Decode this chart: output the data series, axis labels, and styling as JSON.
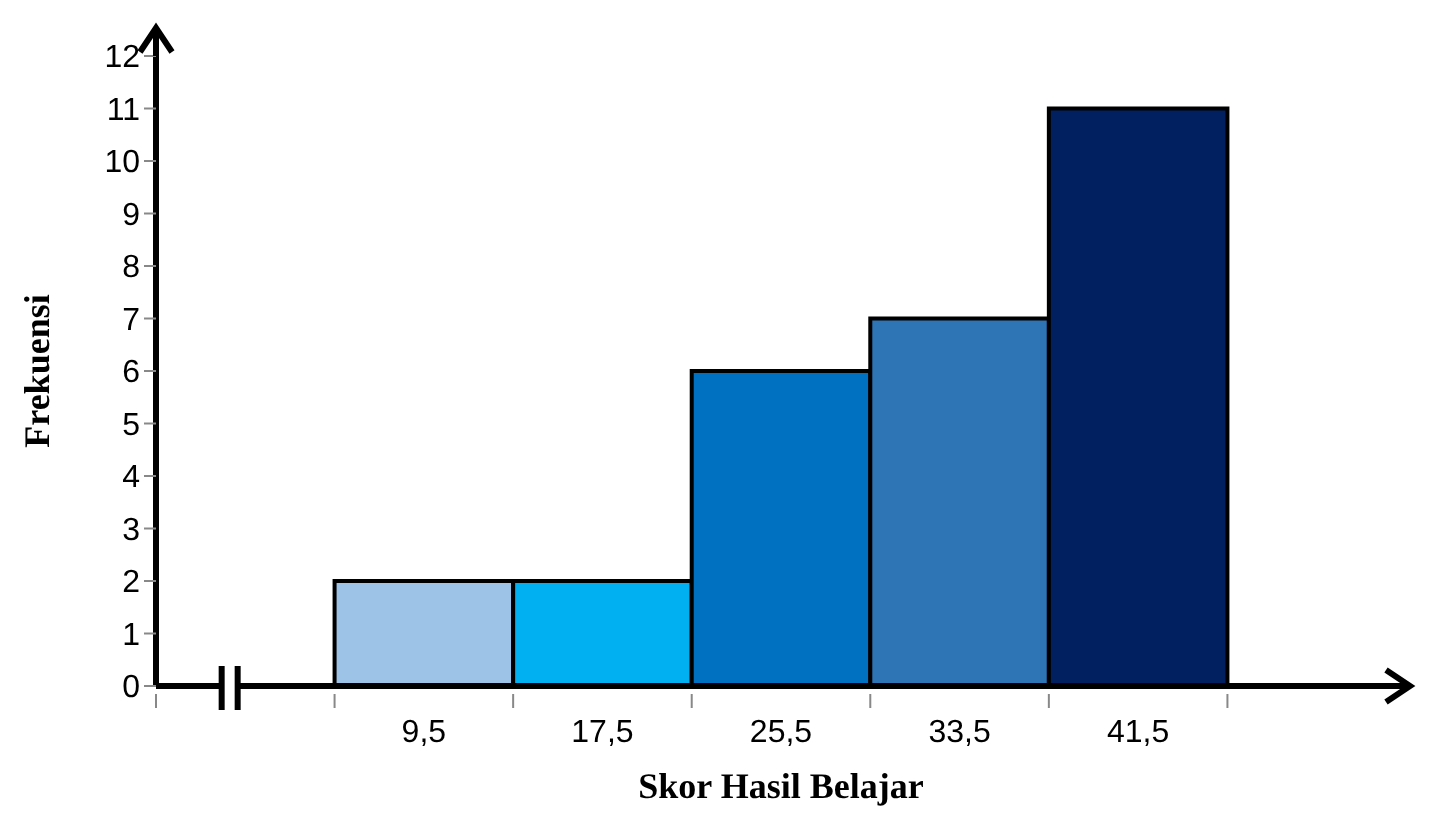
{
  "chart_data": {
    "type": "histogram",
    "xlabel": "Skor Hasil Belajar",
    "ylabel": "Frekuensi",
    "bins": [
      5.5,
      13.5,
      21.5,
      29.5,
      37.5,
      45.5
    ],
    "values": [
      2,
      2,
      6,
      7,
      11
    ],
    "colors": [
      "#9dc3e6",
      "#00b0f0",
      "#0070c0",
      "#2e75b6",
      "#002060"
    ],
    "xlim": [
      -2.5,
      53.5
    ],
    "xticks": [
      {
        "value": -2.5,
        "label": null
      },
      {
        "value": 5.5,
        "label": null
      },
      {
        "value": 9.5,
        "label": "9,5"
      },
      {
        "value": 13.5,
        "label": null
      },
      {
        "value": 17.5,
        "label": "17,5"
      },
      {
        "value": 21.5,
        "label": null
      },
      {
        "value": 25.5,
        "label": "25,5"
      },
      {
        "value": 29.5,
        "label": null
      },
      {
        "value": 33.5,
        "label": "33,5"
      },
      {
        "value": 37.5,
        "label": null
      },
      {
        "value": 41.5,
        "label": "41,5"
      },
      {
        "value": 45.5,
        "label": null
      }
    ],
    "ylim": [
      0,
      12
    ],
    "yticks": [
      0,
      1,
      2,
      3,
      4,
      5,
      6,
      7,
      8,
      9,
      10,
      11,
      12
    ]
  }
}
